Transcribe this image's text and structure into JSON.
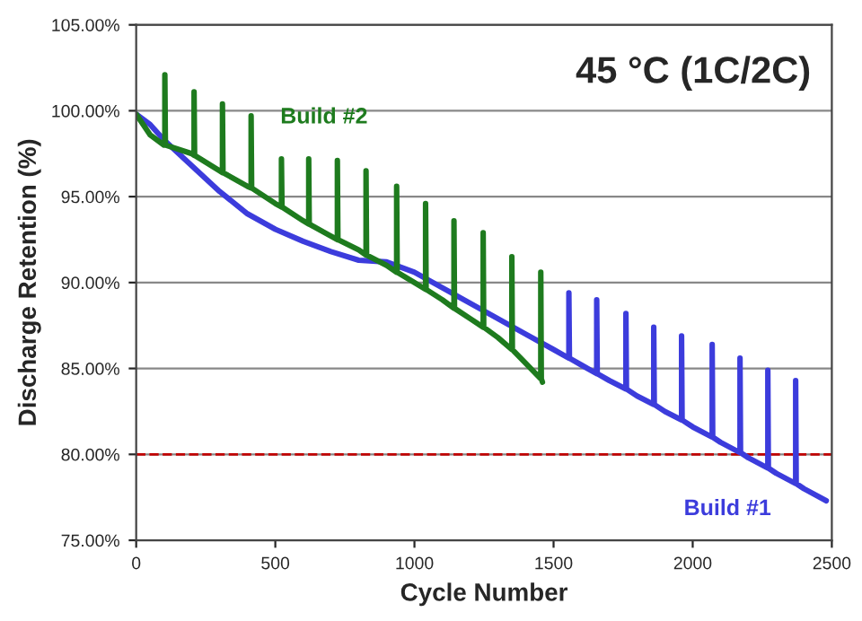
{
  "chart_data": {
    "type": "line",
    "xlabel": "Cycle Number",
    "ylabel": "Discharge Retention (%)",
    "annotations": [
      "45 °C (1C/2C)"
    ],
    "xlim": [
      0,
      2500
    ],
    "xticks": [
      0,
      500,
      1000,
      1500,
      2000,
      2500
    ],
    "ylim": [
      75,
      105
    ],
    "yticks": [
      {
        "value": 75,
        "label": "75.00%"
      },
      {
        "value": 80,
        "label": "80.00%"
      },
      {
        "value": 85,
        "label": "85.00%"
      },
      {
        "value": 90,
        "label": "90.00%"
      },
      {
        "value": 95,
        "label": "95.00%"
      },
      {
        "value": 100,
        "label": "100.00%"
      },
      {
        "value": 105,
        "label": "105.00%"
      }
    ],
    "grid": "y",
    "ref_lines": [
      {
        "axis": "y",
        "value": 80,
        "color": "#c00000",
        "line_style": "dashed"
      }
    ],
    "series": [
      {
        "name": "Build #1",
        "color": "#3c3cdc",
        "x": [
          0,
          50,
          100,
          200,
          300,
          400,
          500,
          600,
          700,
          800,
          900,
          1000,
          1100,
          1200,
          1300,
          1400,
          1500,
          1555,
          1555,
          1557,
          1600,
          1655,
          1655,
          1657,
          1700,
          1760,
          1760,
          1762,
          1800,
          1860,
          1860,
          1862,
          1900,
          1960,
          1960,
          1962,
          2000,
          2070,
          2070,
          2072,
          2100,
          2170,
          2170,
          2172,
          2200,
          2270,
          2270,
          2272,
          2300,
          2370,
          2370,
          2372,
          2400,
          2480
        ],
        "values": [
          99.8,
          99.2,
          98.3,
          96.8,
          95.3,
          94.0,
          93.1,
          92.4,
          91.8,
          91.3,
          91.2,
          90.6,
          89.7,
          88.8,
          87.9,
          87.0,
          86.1,
          85.6,
          89.4,
          85.6,
          85.2,
          84.7,
          89.0,
          84.7,
          84.3,
          83.8,
          88.2,
          83.8,
          83.4,
          82.9,
          87.4,
          82.9,
          82.5,
          82.0,
          86.9,
          82.0,
          81.6,
          81.0,
          86.4,
          81.0,
          80.7,
          80.1,
          85.6,
          80.1,
          79.8,
          79.2,
          84.9,
          79.2,
          78.9,
          78.3,
          84.3,
          78.3,
          78.0,
          77.3
        ]
      },
      {
        "name": "Build #2",
        "color": "#1e7b1e",
        "x": [
          0,
          50,
          100,
          103,
          103,
          105,
          200,
          208,
          208,
          210,
          300,
          310,
          310,
          312,
          400,
          413,
          413,
          415,
          500,
          522,
          522,
          524,
          600,
          620,
          620,
          622,
          700,
          723,
          723,
          725,
          800,
          826,
          826,
          828,
          900,
          936,
          936,
          938,
          1000,
          1040,
          1040,
          1042,
          1100,
          1142,
          1142,
          1144,
          1200,
          1247,
          1247,
          1249,
          1300,
          1350,
          1350,
          1352,
          1400,
          1454,
          1454,
          1456,
          1460
        ],
        "values": [
          99.8,
          98.6,
          98.0,
          98.0,
          102.1,
          98.0,
          97.5,
          97.4,
          101.1,
          97.4,
          96.5,
          96.4,
          100.4,
          96.4,
          95.6,
          95.5,
          99.7,
          95.5,
          94.6,
          94.4,
          97.2,
          94.4,
          93.6,
          93.4,
          97.2,
          93.4,
          92.7,
          92.5,
          97.1,
          92.5,
          91.9,
          91.6,
          96.5,
          91.6,
          91.0,
          90.6,
          95.6,
          90.6,
          90.0,
          89.6,
          94.6,
          89.6,
          89.0,
          88.5,
          93.6,
          88.5,
          87.9,
          87.4,
          92.9,
          87.4,
          86.8,
          86.1,
          91.5,
          86.1,
          85.3,
          84.4,
          90.6,
          84.4,
          84.2
        ]
      }
    ]
  }
}
